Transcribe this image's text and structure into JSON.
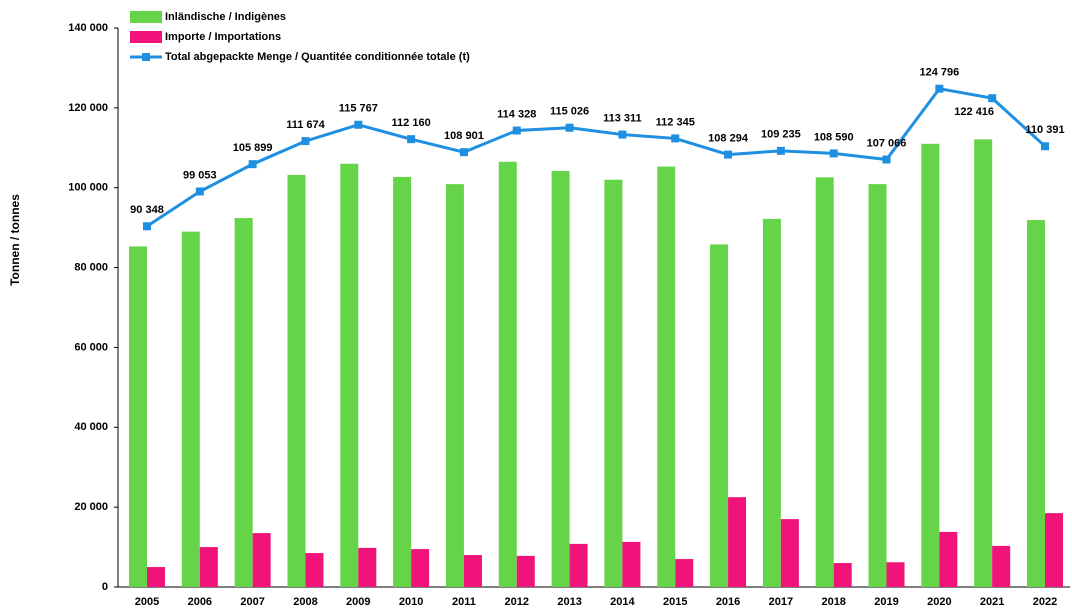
{
  "chart_data": {
    "type": "bar",
    "y_axis_label": "Tonnen / tonnes",
    "categories": [
      "2005",
      "2006",
      "2007",
      "2008",
      "2009",
      "2010",
      "2011",
      "2012",
      "2013",
      "2014",
      "2015",
      "2016",
      "2017",
      "2018",
      "2019",
      "2020",
      "2021",
      "2022"
    ],
    "series": [
      {
        "name": "Inländische / Indigènes",
        "color": "#66d448",
        "type": "bar",
        "values": [
          85300,
          89000,
          92400,
          103200,
          106000,
          102700,
          100900,
          106500,
          104200,
          102000,
          105300,
          85800,
          92200,
          102600,
          100900,
          111000,
          112100,
          91900
        ]
      },
      {
        "name": "Importe / Importations",
        "color": "#f0147a",
        "type": "bar",
        "values": [
          5000,
          10000,
          13500,
          8500,
          9800,
          9500,
          8000,
          7800,
          10800,
          11300,
          7000,
          22500,
          17000,
          6000,
          6200,
          13800,
          10300,
          18500
        ]
      },
      {
        "name": "Total abgepackte Menge / Quantitée conditionnée totale (t)",
        "color": "#1e8fe1",
        "type": "line",
        "values": [
          90348,
          99053,
          105899,
          111674,
          115767,
          112160,
          108901,
          114328,
          115026,
          113311,
          112345,
          108294,
          109235,
          108590,
          107066,
          124796,
          122416,
          110391
        ],
        "value_labels": [
          "90 348",
          "99 053",
          "105 899",
          "111 674",
          "115 767",
          "112 160",
          "108 901",
          "114 328",
          "115 026",
          "113 311",
          "112 345",
          "108 294",
          "109 235",
          "108 590",
          "107 066",
          "124 796",
          "122 416",
          "110 391"
        ]
      }
    ],
    "ylim": [
      0,
      140000
    ],
    "yticks": [
      0,
      {
        "value": 20000,
        "label": "20 000"
      },
      {
        "value": 40000,
        "label": "40 000"
      },
      {
        "value": 60000,
        "label": "60 000"
      },
      {
        "value": 80000,
        "label": "80 000"
      },
      {
        "value": 100000,
        "label": "100 000"
      },
      {
        "value": 120000,
        "label": "120 000"
      },
      {
        "value": 140000,
        "label": "140 000"
      }
    ],
    "legend": "top-left"
  }
}
